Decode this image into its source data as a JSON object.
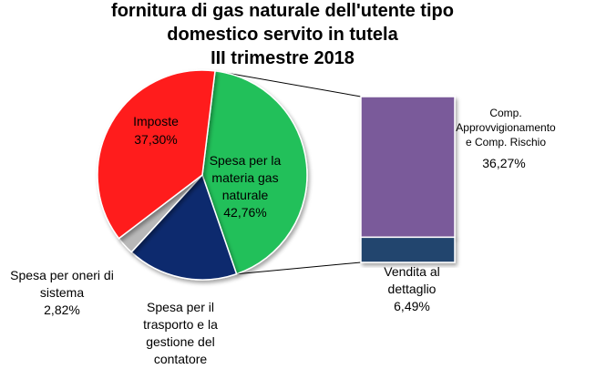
{
  "chart_data": {
    "type": "pie",
    "title_lines": [
      "fornitura di gas naturale dell'utente tipo",
      "domestico servito in tutela",
      "III trimestre 2018"
    ],
    "slices": [
      {
        "label": [
          "Spesa per la",
          "materia gas",
          "naturale"
        ],
        "value": 42.76,
        "value_label": "42,76%",
        "color": "#22c05a"
      },
      {
        "label": [
          "Spesa per il",
          "trasporto e la",
          "gestione del",
          "contatore"
        ],
        "value": 17.12,
        "value_label": "",
        "color": "#0e2a6e"
      },
      {
        "label": [
          "Spesa per oneri di",
          "sistema"
        ],
        "value": 2.82,
        "value_label": "2,82%",
        "color": "#b8b8b8"
      },
      {
        "label": [
          "Imposte"
        ],
        "value": 37.3,
        "value_label": "37,30%",
        "color": "#ff1a1a"
      }
    ],
    "breakdown": {
      "of_slice": "Spesa per la materia gas naturale",
      "segments": [
        {
          "label": [
            "Comp.",
            "Approvvigionamento",
            "e  Comp. Rischio"
          ],
          "value": 36.27,
          "value_label": "36,27%",
          "color": "#7a5a9a"
        },
        {
          "label": [
            "Vendita al",
            "dettaglio"
          ],
          "value": 6.49,
          "value_label": "6,49%",
          "color": "#22446e"
        }
      ]
    }
  }
}
